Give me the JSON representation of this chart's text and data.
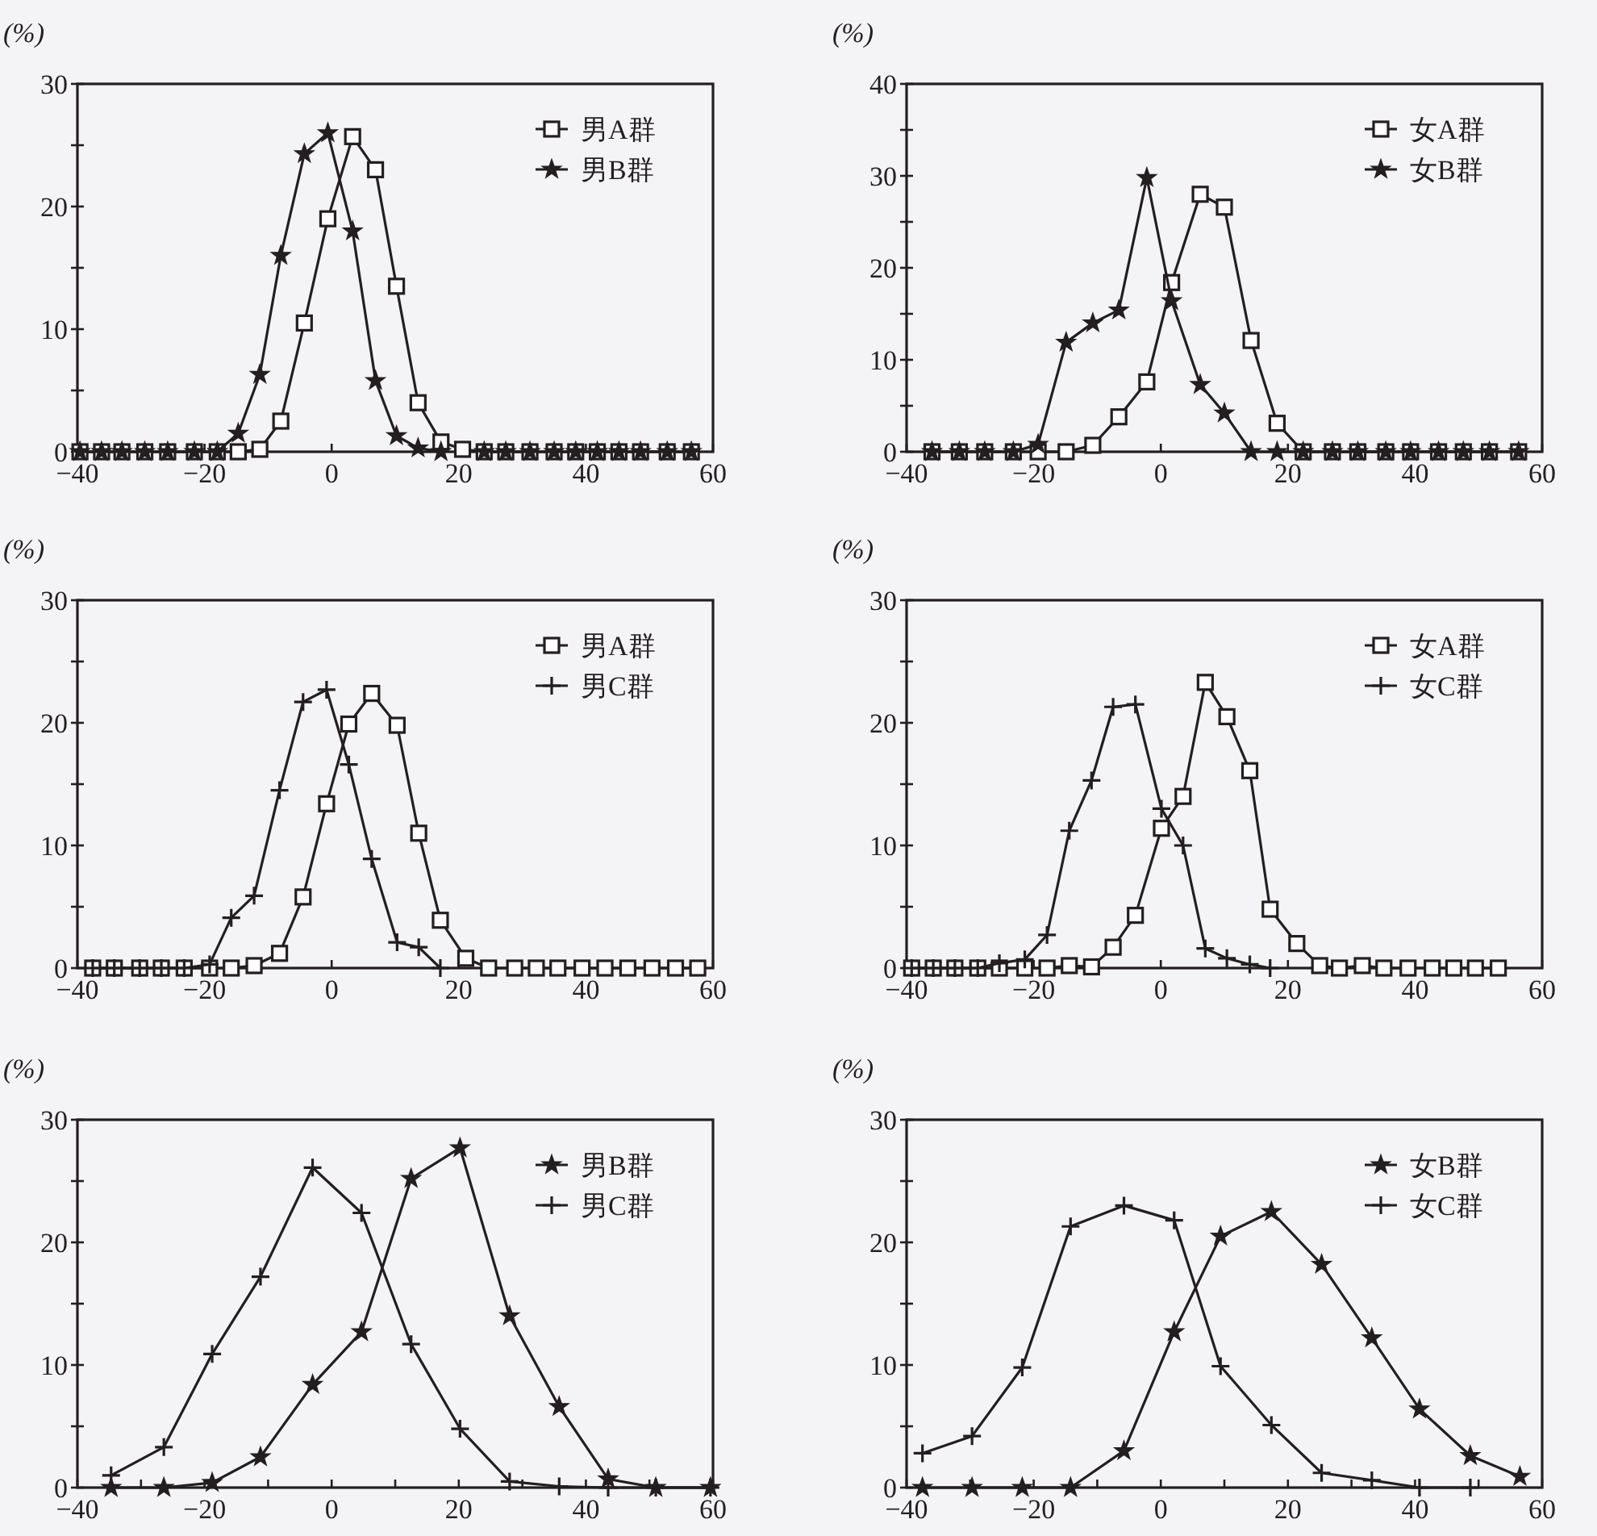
{
  "chart_data": [
    {
      "type": "line",
      "ylabel": "(%)",
      "xlim": [
        -40,
        60
      ],
      "ylim": [
        0,
        30
      ],
      "xticks": [
        -40,
        -20,
        0,
        20,
        40,
        60
      ],
      "yticks": [
        0,
        {
          "value": 5,
          "label": null
        },
        10,
        {
          "value": 15,
          "label": null
        },
        20,
        {
          "value": 25,
          "label": null
        },
        30
      ],
      "legend": "top right",
      "grid": false,
      "x": [
        -39.6,
        -36.2,
        -33,
        -29.4,
        -25.8,
        -21.6,
        -18,
        -14.7,
        -11.3,
        -8,
        -4.3,
        -0.6,
        3.3,
        6.9,
        10.2,
        13.6,
        17.2,
        20.6,
        24,
        27.4,
        31.2,
        35,
        38.4,
        41.8,
        45.2,
        48.6,
        52.8,
        56.6
      ],
      "series": [
        {
          "name": "男A群",
          "color": "#231f20",
          "marker": "square",
          "values": [
            0,
            0,
            0,
            0,
            0,
            0,
            0,
            0,
            0.2,
            2.5,
            10.5,
            19,
            25.7,
            23,
            13.5,
            4,
            0.8,
            0.2,
            0,
            0,
            0,
            0,
            0,
            0,
            0,
            0,
            0,
            0
          ]
        },
        {
          "name": "男B群",
          "color": "#231f20",
          "marker": "star",
          "values": [
            0,
            0,
            0,
            0,
            0,
            0,
            0,
            1.5,
            6.3,
            16,
            24.3,
            26,
            18,
            5.8,
            1.3,
            0.3,
            0,
            null,
            0,
            0,
            0,
            0,
            0,
            0,
            0,
            0,
            0,
            0
          ]
        }
      ]
    },
    {
      "type": "line",
      "ylabel": "(%)",
      "xlim": [
        -40,
        60
      ],
      "ylim": [
        0,
        40
      ],
      "xticks": [
        -40,
        -20,
        0,
        20,
        40,
        60
      ],
      "yticks": [
        0,
        {
          "value": 5,
          "label": null
        },
        10,
        {
          "value": 15,
          "label": null
        },
        20,
        {
          "value": 25,
          "label": null
        },
        30,
        {
          "value": 35,
          "label": null
        },
        40
      ],
      "legend": "top right",
      "grid": false,
      "x": [
        -36,
        -31.7,
        -27.7,
        -23.2,
        -19.3,
        -14.9,
        -10.7,
        -6.6,
        -2.2,
        1.7,
        6.2,
        10,
        14.2,
        18.3,
        22.4,
        27,
        31,
        35.4,
        39.3,
        43.7,
        47.6,
        51.7,
        56.3
      ],
      "series": [
        {
          "name": "女A群",
          "color": "#231f20",
          "marker": "square",
          "values": [
            0,
            0,
            0,
            0,
            0,
            0,
            0.7,
            3.8,
            7.6,
            18.4,
            28,
            26.6,
            12.1,
            3.1,
            0,
            0,
            0,
            0,
            0,
            0,
            0,
            0,
            0
          ]
        },
        {
          "name": "女B群",
          "color": "#231f20",
          "marker": "star",
          "values": [
            0,
            0,
            0,
            0,
            0.8,
            11.9,
            14,
            15.4,
            29.8,
            16.4,
            7.3,
            4.2,
            0,
            0,
            0,
            0,
            0,
            0,
            0,
            0,
            0,
            0,
            0
          ]
        }
      ]
    },
    {
      "type": "line",
      "ylabel": "(%)",
      "xlim": [
        -40,
        60
      ],
      "ylim": [
        0,
        30
      ],
      "xticks": [
        -40,
        -20,
        0,
        20,
        40,
        60
      ],
      "yticks": [
        0,
        {
          "value": 5,
          "label": null
        },
        10,
        {
          "value": 15,
          "label": null
        },
        20,
        {
          "value": 25,
          "label": null
        },
        30
      ],
      "legend": "top right",
      "grid": false,
      "x": [
        -37.6,
        -34.2,
        -30.2,
        -26.8,
        -23.2,
        -19.2,
        -15.8,
        -12.2,
        -8.2,
        -4.5,
        -0.8,
        2.7,
        6.3,
        10.3,
        13.7,
        17.1,
        21.1,
        24.7,
        28.8,
        32.2,
        35.6,
        39.4,
        43,
        46.6,
        50.4,
        54.1,
        57.6
      ],
      "series": [
        {
          "name": "男A群",
          "color": "#231f20",
          "marker": "square",
          "values": [
            0,
            0,
            0,
            0,
            0,
            0,
            0,
            0.2,
            1.2,
            5.8,
            13.4,
            19.9,
            22.4,
            19.8,
            11,
            3.9,
            0.8,
            0,
            0,
            0,
            0,
            0,
            0,
            0,
            0,
            0,
            0
          ]
        },
        {
          "name": "男C群",
          "color": "#231f20",
          "marker": "cross",
          "values": [
            0,
            0,
            0,
            0,
            0,
            0.3,
            4.1,
            5.9,
            14.5,
            21.7,
            22.7,
            16.6,
            8.9,
            2.1,
            1.7,
            0,
            null,
            null,
            null,
            null,
            null,
            null,
            null,
            null,
            null,
            null,
            null
          ]
        }
      ]
    },
    {
      "type": "line",
      "ylabel": "(%)",
      "xlim": [
        -40,
        60
      ],
      "ylim": [
        0,
        30
      ],
      "xticks": [
        -40,
        -20,
        0,
        20,
        40,
        60
      ],
      "yticks": [
        0,
        {
          "value": 5,
          "label": null
        },
        10,
        {
          "value": 15,
          "label": null
        },
        20,
        {
          "value": 25,
          "label": null
        },
        30
      ],
      "legend": "top right",
      "grid": false,
      "x": [
        -39.2,
        -35.8,
        -32.4,
        -28.8,
        -25.4,
        -21.4,
        -17.9,
        -14.4,
        -10.9,
        -7.5,
        -4,
        0.1,
        3.5,
        7,
        10.4,
        14,
        17.2,
        21.4,
        25,
        28.1,
        31.7,
        35.1,
        38.9,
        42.7,
        46.1,
        49.5,
        53.1
      ],
      "series": [
        {
          "name": "女A群",
          "color": "#231f20",
          "marker": "square",
          "values": [
            0,
            0,
            0,
            0,
            0,
            0,
            0,
            0.2,
            0.1,
            1.7,
            4.3,
            11.4,
            14,
            23.3,
            20.5,
            16.1,
            4.8,
            2,
            0.2,
            0,
            0.2,
            0,
            0,
            0,
            0,
            0,
            0
          ]
        },
        {
          "name": "女C群",
          "color": "#231f20",
          "marker": "cross",
          "values": [
            0,
            0,
            0,
            0,
            0.4,
            0.7,
            2.7,
            11.2,
            15.3,
            21.3,
            21.5,
            13,
            10,
            1.6,
            0.8,
            0.3,
            0,
            null,
            null,
            null,
            null,
            null,
            null,
            null,
            null,
            null,
            null
          ]
        }
      ]
    },
    {
      "type": "line",
      "ylabel": "(%)",
      "xlim": [
        -40,
        60
      ],
      "ylim": [
        0,
        30
      ],
      "xticks": [
        -40,
        {
          "value": -30,
          "label": null
        },
        -20,
        {
          "value": -10,
          "label": null
        },
        0,
        {
          "value": 10,
          "label": null
        },
        20,
        {
          "value": 30,
          "label": null
        },
        40,
        {
          "value": 50,
          "label": null
        },
        60
      ],
      "yticks": [
        0,
        {
          "value": 5,
          "label": null
        },
        10,
        {
          "value": 15,
          "label": null
        },
        20,
        {
          "value": 25,
          "label": null
        },
        30
      ],
      "legend": "top right",
      "grid": false,
      "x": [
        -34.7,
        -26.4,
        -18.8,
        -11.2,
        -3,
        4.7,
        12.5,
        20.2,
        28,
        35.8,
        43.5,
        51,
        59.6
      ],
      "series": [
        {
          "name": "男B群",
          "color": "#231f20",
          "marker": "star",
          "values": [
            0,
            0,
            0.4,
            2.5,
            8.4,
            12.7,
            25.2,
            27.7,
            14,
            6.6,
            0.7,
            0,
            0
          ]
        },
        {
          "name": "男C群",
          "color": "#231f20",
          "marker": "cross",
          "values": [
            1,
            3.3,
            10.9,
            17.2,
            26.1,
            22.4,
            11.7,
            4.8,
            0.5,
            0.1,
            0,
            0,
            0
          ]
        }
      ]
    },
    {
      "type": "line",
      "ylabel": "(%)",
      "xlim": [
        -40,
        60
      ],
      "ylim": [
        0,
        30
      ],
      "xticks": [
        -40,
        {
          "value": -30,
          "label": null
        },
        -20,
        {
          "value": -10,
          "label": null
        },
        0,
        {
          "value": 10,
          "label": null
        },
        20,
        {
          "value": 30,
          "label": null
        },
        40,
        {
          "value": 50,
          "label": null
        },
        60
      ],
      "yticks": [
        0,
        {
          "value": 5,
          "label": null
        },
        10,
        {
          "value": 15,
          "label": null
        },
        20,
        {
          "value": 25,
          "label": null
        },
        30
      ],
      "legend": "top right",
      "grid": false,
      "x": [
        -37.5,
        -29.7,
        -21.8,
        -14.2,
        -5.8,
        2.1,
        9.4,
        17.4,
        25.3,
        33.2,
        40.7,
        48.7,
        56.5
      ],
      "series": [
        {
          "name": "女B群",
          "color": "#231f20",
          "marker": "star",
          "values": [
            0,
            0,
            0,
            0,
            3,
            12.7,
            20.5,
            22.5,
            18.2,
            12.2,
            6.4,
            2.6,
            0.9
          ]
        },
        {
          "name": "女C群",
          "color": "#231f20",
          "marker": "cross",
          "values": [
            2.8,
            4.2,
            9.8,
            21.3,
            23,
            21.8,
            9.9,
            5.1,
            1.2,
            0.6,
            0,
            0,
            null
          ]
        }
      ]
    }
  ]
}
